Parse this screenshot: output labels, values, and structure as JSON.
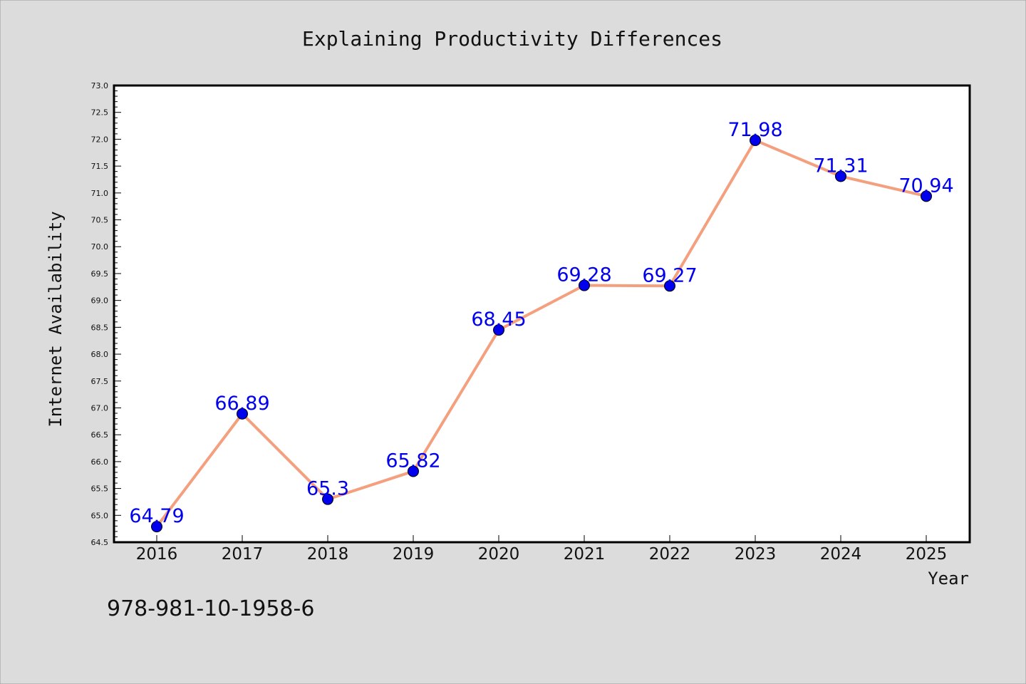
{
  "chart_data": {
    "type": "line",
    "title": "Explaining Productivity Differences",
    "xlabel": "Year",
    "ylabel": "Internet Availability",
    "categories": [
      "2016",
      "2017",
      "2018",
      "2019",
      "2020",
      "2021",
      "2022",
      "2023",
      "2024",
      "2025"
    ],
    "series": [
      {
        "values": [
          64.79,
          66.89,
          65.3,
          65.82,
          68.45,
          69.28,
          69.27,
          71.98,
          71.31,
          70.94
        ],
        "labels": [
          "64.79",
          "66.89",
          "65.3",
          "65.82",
          "68.45",
          "69.28",
          "69.27",
          "71.98",
          "71.31",
          "70.94"
        ]
      }
    ],
    "ylim": [
      64.5,
      73.0
    ],
    "yticks": [
      "64.5",
      "65.0",
      "65.5",
      "66.0",
      "66.5",
      "67.0",
      "67.5",
      "68.0",
      "68.5",
      "69.0",
      "69.5",
      "70.0",
      "70.5",
      "71.0",
      "71.5",
      "72.0",
      "72.5",
      "73.0"
    ],
    "grid": false,
    "legend": "none",
    "colors": {
      "line": "#f4a07e",
      "marker": "#0000ee",
      "label": "#0000ee",
      "background": "#dcdcdc",
      "plot_background": "#ffffff"
    }
  },
  "annotation": "978-981-10-1958-6"
}
